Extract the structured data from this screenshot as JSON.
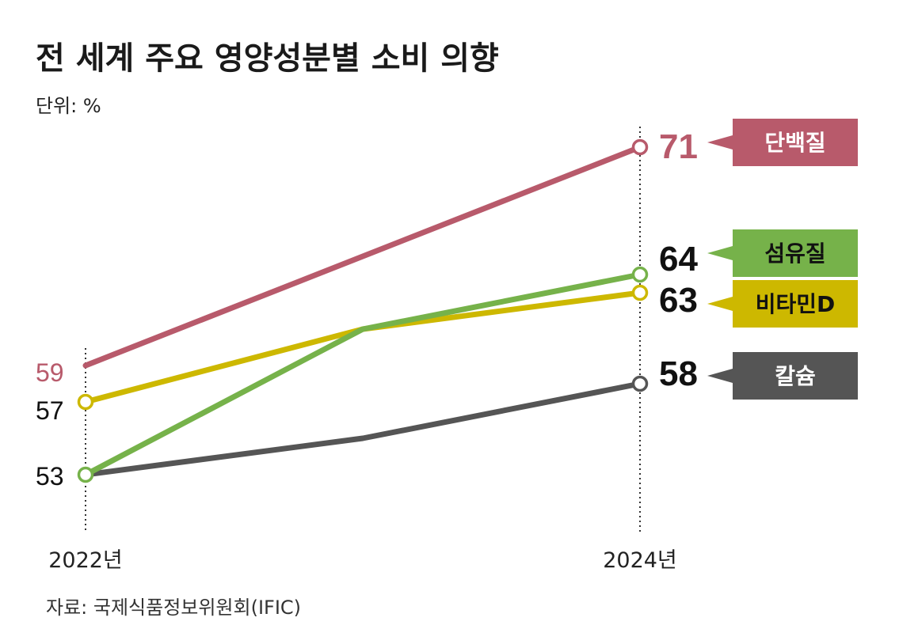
{
  "title": "전 세계 주요 영양성분별 소비 의향",
  "unit_label": "단위: %",
  "source": "자료: 국제식품정보위원회(IFIC)",
  "colors": {
    "protein": "#b85a6b",
    "fiber": "#76b24a",
    "vitamin_d": "#cdb800",
    "calcium": "#555555",
    "dotted_line": "#333333"
  },
  "chart_data": {
    "type": "line",
    "x_labels": [
      "2022년",
      "2024년"
    ],
    "series": [
      {
        "key": "protein",
        "name": "단백질",
        "values": [
          59,
          65,
          71
        ],
        "start_label": "59",
        "end_label": "71"
      },
      {
        "key": "fiber",
        "name": "섬유질",
        "values": [
          53,
          61,
          64
        ],
        "start_label": "53",
        "end_label": "64"
      },
      {
        "key": "vitamin_d",
        "name": "비타민D",
        "values": [
          57,
          61,
          63
        ],
        "start_label": "57",
        "end_label": "63"
      },
      {
        "key": "calcium",
        "name": "칼슘",
        "values": [
          53,
          55,
          58
        ],
        "start_label": "53",
        "end_label": "58"
      }
    ],
    "grid": false,
    "legend": "right"
  }
}
